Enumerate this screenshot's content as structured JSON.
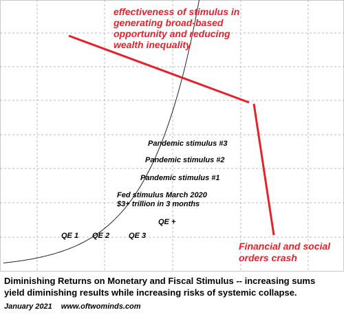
{
  "chart_data": {
    "type": "line",
    "title": "",
    "xlabel": "",
    "ylabel": "",
    "grid": true,
    "curve": "exponential",
    "annotations": {
      "top": [
        "effectiveness of stimulus in",
        "generating broad-based",
        "opportunity and reducing",
        "wealth inequality"
      ],
      "bottom": [
        "Financial and social",
        "orders crash"
      ],
      "points": [
        {
          "lines": [
            "QE 1"
          ]
        },
        {
          "lines": [
            "QE 2"
          ]
        },
        {
          "lines": [
            "QE 3"
          ]
        },
        {
          "lines": [
            "QE +"
          ]
        },
        {
          "lines": [
            "Fed stimulus March 2020",
            "$3+ trillion in 3  months"
          ]
        },
        {
          "lines": [
            "Pandemic stimulus #1"
          ]
        },
        {
          "lines": [
            "Pandemic stimulus #2"
          ]
        },
        {
          "lines": [
            "Pandemic stimulus #3"
          ]
        }
      ]
    },
    "colors": {
      "curve": "#222222",
      "accent": "#e8202a",
      "grid": "#b8b8b8"
    }
  },
  "caption": {
    "line1": "Diminishing Returns on Monetary and Fiscal Stimulus -- increasing sums",
    "line2": "yield diminishing results while increasing risks of systemic collapse.",
    "date": "January 2021",
    "site": "www.oftwominds.com"
  }
}
